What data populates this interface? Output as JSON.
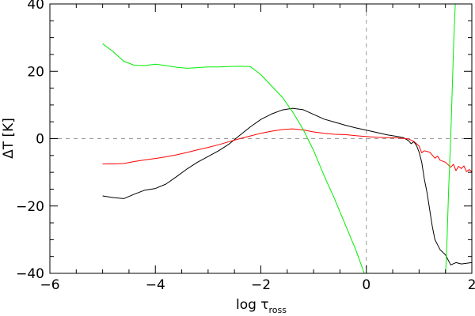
{
  "chart_data": {
    "type": "line",
    "xlabel": "log τ",
    "xlabel_subscript": "ross",
    "ylabel": "ΔT [K]",
    "xlim": [
      -6,
      2
    ],
    "ylim": [
      -40,
      40
    ],
    "x_ticks": [
      -6,
      -4,
      -2,
      0,
      2
    ],
    "y_ticks": [
      -40,
      -20,
      0,
      20,
      40
    ],
    "x_tick_labels": [
      "−6",
      "−4",
      "−2",
      "0",
      "2"
    ],
    "y_tick_labels": [
      "−40",
      "−20",
      "0",
      "20",
      "40"
    ],
    "reference_lines": [
      {
        "orientation": "horizontal",
        "value": 0,
        "style": "dashed",
        "color": "#999999"
      },
      {
        "orientation": "vertical",
        "value": 0,
        "style": "dashed",
        "color": "#999999"
      }
    ],
    "series": [
      {
        "color": "#000000",
        "points": [
          [
            -5.0,
            -17.0
          ],
          [
            -4.8,
            -17.5
          ],
          [
            -4.6,
            -17.8
          ],
          [
            -4.4,
            -16.5
          ],
          [
            -4.2,
            -15.3
          ],
          [
            -4.0,
            -14.8
          ],
          [
            -3.8,
            -13.5
          ],
          [
            -3.6,
            -11.3
          ],
          [
            -3.4,
            -9.0
          ],
          [
            -3.2,
            -7.0
          ],
          [
            -3.0,
            -5.3
          ],
          [
            -2.8,
            -3.6
          ],
          [
            -2.6,
            -1.6
          ],
          [
            -2.4,
            1.0
          ],
          [
            -2.2,
            3.5
          ],
          [
            -2.0,
            5.7
          ],
          [
            -1.8,
            7.3
          ],
          [
            -1.6,
            8.5
          ],
          [
            -1.4,
            9.0
          ],
          [
            -1.2,
            8.6
          ],
          [
            -1.0,
            7.2
          ],
          [
            -0.8,
            5.8
          ],
          [
            -0.6,
            4.9
          ],
          [
            -0.4,
            4.0
          ],
          [
            -0.2,
            3.2
          ],
          [
            0.0,
            2.5
          ],
          [
            0.2,
            1.8
          ],
          [
            0.4,
            1.1
          ],
          [
            0.6,
            0.6
          ],
          [
            0.7,
            0.3
          ],
          [
            0.8,
            -0.6
          ],
          [
            0.85,
            -1.5
          ],
          [
            0.9,
            -0.9
          ],
          [
            0.95,
            -2.0
          ],
          [
            1.0,
            -4.0
          ],
          [
            1.05,
            -7.0
          ],
          [
            1.1,
            -12.0
          ],
          [
            1.15,
            -16.0
          ],
          [
            1.2,
            -21.0
          ],
          [
            1.25,
            -26.0
          ],
          [
            1.3,
            -30.0
          ],
          [
            1.4,
            -33.0
          ],
          [
            1.5,
            -34.5
          ],
          [
            1.6,
            -37.5
          ],
          [
            1.7,
            -36.8
          ],
          [
            1.8,
            -37.2
          ],
          [
            1.9,
            -37.0
          ],
          [
            2.0,
            -36.8
          ]
        ]
      },
      {
        "color": "#ff0000",
        "points": [
          [
            -5.0,
            -7.5
          ],
          [
            -4.8,
            -7.5
          ],
          [
            -4.6,
            -7.4
          ],
          [
            -4.4,
            -6.8
          ],
          [
            -4.2,
            -6.3
          ],
          [
            -4.0,
            -5.9
          ],
          [
            -3.8,
            -5.4
          ],
          [
            -3.6,
            -4.8
          ],
          [
            -3.4,
            -4.1
          ],
          [
            -3.2,
            -3.3
          ],
          [
            -3.0,
            -2.6
          ],
          [
            -2.8,
            -1.8
          ],
          [
            -2.6,
            -0.9
          ],
          [
            -2.4,
            0.0
          ],
          [
            -2.2,
            0.8
          ],
          [
            -2.0,
            1.6
          ],
          [
            -1.8,
            2.2
          ],
          [
            -1.6,
            2.7
          ],
          [
            -1.4,
            2.9
          ],
          [
            -1.2,
            2.6
          ],
          [
            -1.0,
            2.0
          ],
          [
            -0.8,
            1.6
          ],
          [
            -0.6,
            1.3
          ],
          [
            -0.4,
            1.2
          ],
          [
            -0.2,
            0.9
          ],
          [
            0.0,
            0.6
          ],
          [
            0.2,
            0.4
          ],
          [
            0.4,
            0.3
          ],
          [
            0.6,
            0.2
          ],
          [
            0.8,
            -0.1
          ],
          [
            0.9,
            -0.8
          ],
          [
            1.0,
            -2.2
          ],
          [
            1.05,
            -4.2
          ],
          [
            1.1,
            -3.6
          ],
          [
            1.2,
            -4.0
          ],
          [
            1.3,
            -5.8
          ],
          [
            1.35,
            -5.2
          ],
          [
            1.4,
            -6.4
          ],
          [
            1.5,
            -7.0
          ],
          [
            1.6,
            -8.5
          ],
          [
            1.65,
            -7.6
          ],
          [
            1.7,
            -9.5
          ],
          [
            1.75,
            -8.2
          ],
          [
            1.8,
            -8.9
          ],
          [
            1.85,
            -8.1
          ],
          [
            1.9,
            -9.8
          ],
          [
            1.95,
            -9.2
          ],
          [
            2.0,
            -9.8
          ]
        ]
      },
      {
        "color": "#00ee00",
        "points": [
          [
            -5.0,
            28.2
          ],
          [
            -4.8,
            25.8
          ],
          [
            -4.6,
            23.0
          ],
          [
            -4.4,
            21.8
          ],
          [
            -4.2,
            21.7
          ],
          [
            -4.0,
            22.1
          ],
          [
            -3.8,
            21.7
          ],
          [
            -3.6,
            21.2
          ],
          [
            -3.4,
            20.9
          ],
          [
            -3.2,
            21.1
          ],
          [
            -3.0,
            21.3
          ],
          [
            -2.8,
            21.3
          ],
          [
            -2.6,
            21.4
          ],
          [
            -2.4,
            21.5
          ],
          [
            -2.2,
            21.4
          ],
          [
            -2.0,
            19.0
          ],
          [
            -1.8,
            15.7
          ],
          [
            -1.6,
            12.4
          ],
          [
            -1.4,
            8.0
          ],
          [
            -1.2,
            2.8
          ],
          [
            -1.0,
            -3.5
          ],
          [
            -0.8,
            -11.0
          ],
          [
            -0.6,
            -18.0
          ],
          [
            -0.4,
            -25.5
          ],
          [
            -0.2,
            -33.0
          ],
          [
            -0.05,
            -39.5
          ],
          [
            -0.02,
            -41.0
          ]
        ]
      },
      {
        "color": "#00ee00",
        "points": [
          [
            1.5,
            -41.0
          ],
          [
            1.53,
            -30.0
          ],
          [
            1.56,
            -15.0
          ],
          [
            1.6,
            0.0
          ],
          [
            1.63,
            15.0
          ],
          [
            1.66,
            30.0
          ],
          [
            1.69,
            41.0
          ]
        ]
      }
    ]
  }
}
